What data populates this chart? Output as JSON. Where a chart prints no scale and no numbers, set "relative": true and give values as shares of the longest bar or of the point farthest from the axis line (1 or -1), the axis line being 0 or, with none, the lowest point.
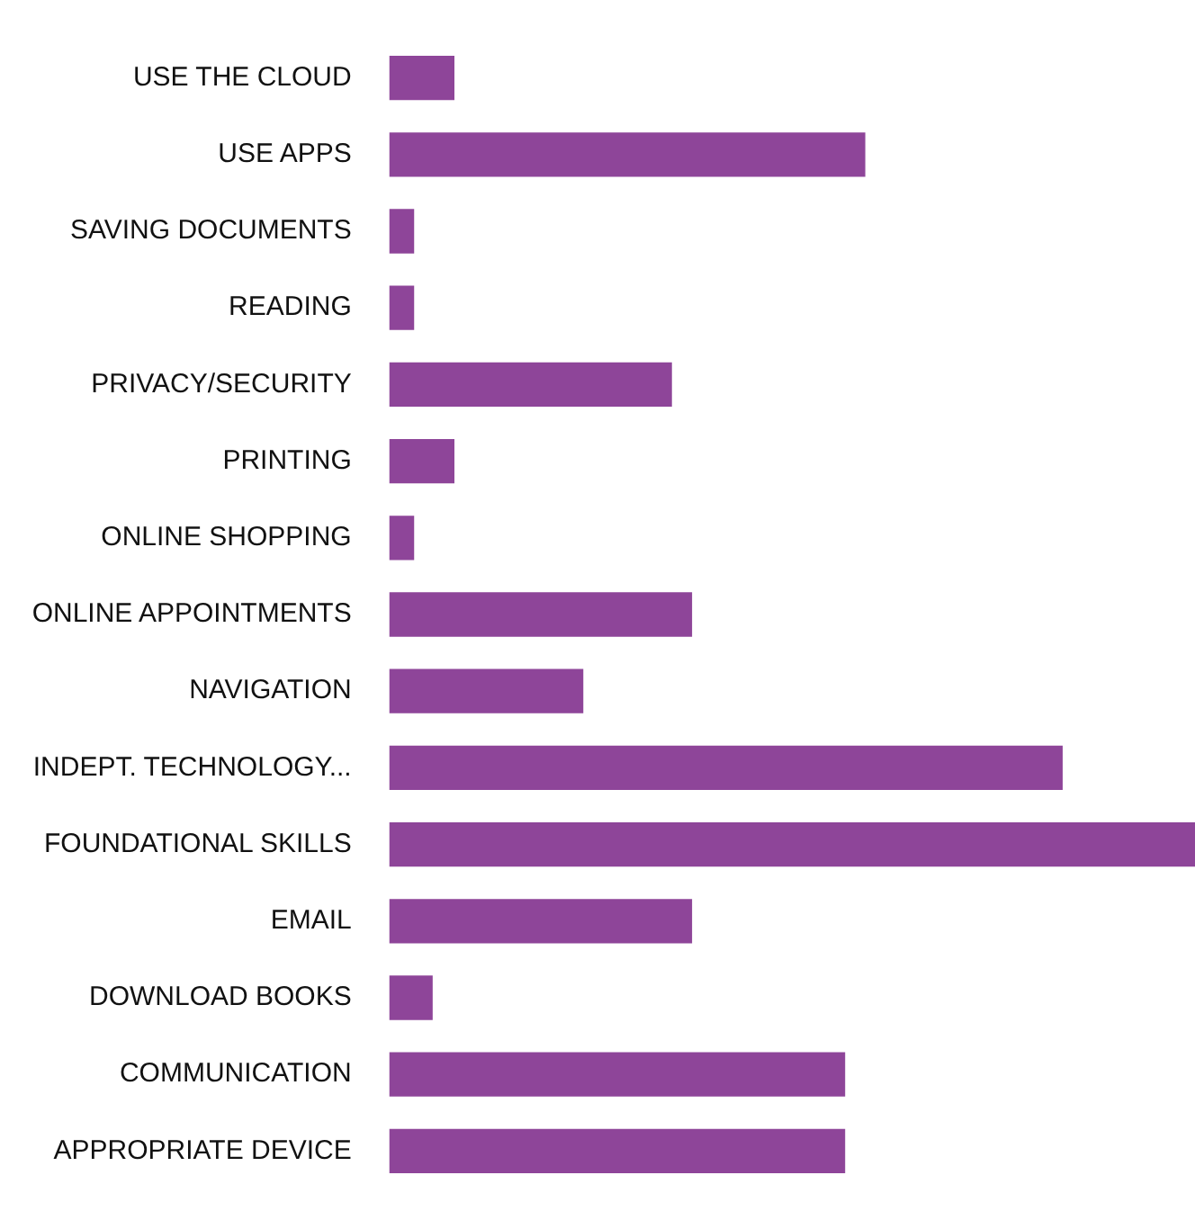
{
  "chart_data": {
    "type": "bar",
    "orientation": "horizontal",
    "relative": true,
    "legend": false,
    "categories": [
      "USE THE CLOUD",
      "USE APPS",
      "SAVING DOCUMENTS",
      "READING",
      "PRIVACY/SECURITY",
      "PRINTING",
      "ONLINE SHOPPING",
      "ONLINE APPOINTMENTS",
      "NAVIGATION",
      "INDEPT. TECHNOLOGY...",
      "FOUNDATIONAL SKILLS",
      "EMAIL",
      "DOWNLOAD BOOKS",
      "COMMUNICATION",
      "APPROPRIATE DEVICE"
    ],
    "values": [
      0.08,
      0.59,
      0.03,
      0.03,
      0.35,
      0.08,
      0.03,
      0.375,
      0.24,
      0.835,
      1,
      0.375,
      0.053,
      0.565,
      0.565
    ],
    "color": "#8e4599"
  }
}
